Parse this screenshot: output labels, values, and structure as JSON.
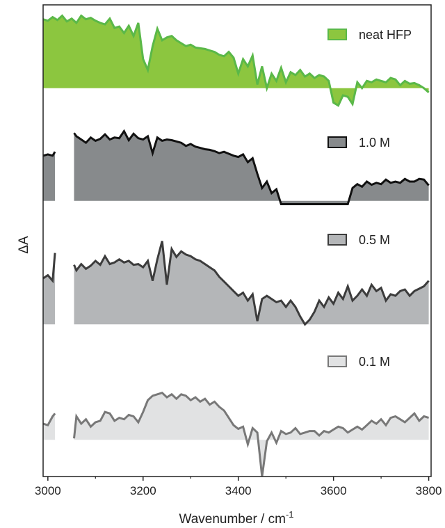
{
  "chart_data": {
    "type": "area",
    "xlabel": "Wavenumber / cm",
    "xlabel_superscript": "-1",
    "ylabel": "ΔA",
    "xlim": [
      2990,
      3805
    ],
    "x_ticks": [
      3000,
      3200,
      3400,
      3600,
      3800
    ],
    "x_tick_labels": [
      "3000",
      "3200",
      "3400",
      "3600",
      "3800"
    ],
    "y_axis": "no tick labels; traces vertically offset",
    "grid": false,
    "legend": "right, beside each trace",
    "series": [
      {
        "name": "neat HFP",
        "fill": "#8cc63f",
        "line": "#5ab848",
        "baseline": 0,
        "ylim": [
          -0.32,
          1.12
        ],
        "gaps": [],
        "x": [
          2990,
          3000,
          3010,
          3020,
          3030,
          3040,
          3050,
          3060,
          3070,
          3080,
          3090,
          3100,
          3110,
          3120,
          3130,
          3140,
          3150,
          3160,
          3170,
          3180,
          3190,
          3200,
          3210,
          3220,
          3230,
          3240,
          3250,
          3260,
          3270,
          3280,
          3290,
          3300,
          3310,
          3320,
          3330,
          3340,
          3350,
          3360,
          3370,
          3380,
          3390,
          3400,
          3410,
          3420,
          3430,
          3440,
          3450,
          3460,
          3470,
          3480,
          3490,
          3500,
          3510,
          3520,
          3530,
          3540,
          3550,
          3560,
          3570,
          3580,
          3590,
          3600,
          3610,
          3620,
          3630,
          3640,
          3650,
          3660,
          3670,
          3680,
          3690,
          3700,
          3710,
          3720,
          3730,
          3740,
          3750,
          3760,
          3770,
          3780,
          3790,
          3800
        ],
        "values": [
          0.95,
          0.93,
          0.98,
          0.94,
          1.0,
          0.92,
          0.96,
          0.9,
          1.0,
          0.95,
          0.97,
          0.93,
          0.9,
          0.88,
          0.96,
          0.83,
          0.85,
          0.76,
          0.86,
          0.72,
          0.9,
          0.4,
          0.25,
          0.58,
          0.82,
          0.66,
          0.7,
          0.72,
          0.66,
          0.62,
          0.58,
          0.6,
          0.56,
          0.55,
          0.54,
          0.52,
          0.5,
          0.46,
          0.44,
          0.5,
          0.42,
          0.2,
          0.4,
          0.3,
          0.45,
          0.05,
          0.3,
          0.0,
          0.2,
          0.1,
          0.28,
          0.08,
          0.22,
          0.18,
          0.25,
          0.16,
          0.2,
          0.14,
          0.18,
          0.16,
          0.1,
          -0.2,
          -0.24,
          -0.1,
          -0.12,
          -0.22,
          0.08,
          0.0,
          0.1,
          0.08,
          0.12,
          0.1,
          0.08,
          0.14,
          0.12,
          0.04,
          0.1,
          0.06,
          0.07,
          0.04,
          0.0,
          -0.06
        ]
      },
      {
        "name": "1.0 M",
        "fill": "#878a8c",
        "line": "#111111",
        "baseline": 0,
        "ylim": [
          -0.12,
          1.3
        ],
        "gaps": [
          [
            3015,
            3055
          ]
        ],
        "x": [
          2990,
          3000,
          3010,
          3015,
          3055,
          3060,
          3070,
          3080,
          3090,
          3100,
          3110,
          3120,
          3130,
          3140,
          3150,
          3160,
          3170,
          3180,
          3190,
          3200,
          3210,
          3220,
          3230,
          3240,
          3250,
          3260,
          3270,
          3280,
          3290,
          3300,
          3310,
          3320,
          3330,
          3340,
          3350,
          3360,
          3370,
          3380,
          3390,
          3400,
          3410,
          3420,
          3430,
          3440,
          3450,
          3460,
          3470,
          3480,
          3490,
          3500,
          3510,
          3520,
          3530,
          3540,
          3550,
          3560,
          3570,
          3580,
          3590,
          3600,
          3610,
          3620,
          3630,
          3640,
          3650,
          3660,
          3670,
          3680,
          3690,
          3700,
          3710,
          3720,
          3730,
          3740,
          3750,
          3760,
          3770,
          3780,
          3790,
          3800
        ],
        "values": [
          0.7,
          0.72,
          0.7,
          0.76,
          1.05,
          1.0,
          0.95,
          0.9,
          0.98,
          0.93,
          0.96,
          1.03,
          0.95,
          0.98,
          0.97,
          1.08,
          0.94,
          1.04,
          0.97,
          0.95,
          1.0,
          0.74,
          0.98,
          0.93,
          0.95,
          0.94,
          0.92,
          0.9,
          0.85,
          0.88,
          0.84,
          0.82,
          0.8,
          0.79,
          0.77,
          0.74,
          0.76,
          0.73,
          0.7,
          0.68,
          0.72,
          0.6,
          0.66,
          0.42,
          0.2,
          0.3,
          0.12,
          0.18,
          -0.05,
          -0.05,
          -0.05,
          -0.05,
          -0.05,
          -0.05,
          -0.05,
          -0.05,
          -0.05,
          -0.05,
          -0.05,
          -0.05,
          -0.05,
          -0.05,
          -0.05,
          0.2,
          0.26,
          0.22,
          0.3,
          0.25,
          0.28,
          0.26,
          0.33,
          0.28,
          0.3,
          0.28,
          0.34,
          0.3,
          0.3,
          0.34,
          0.33,
          0.24
        ]
      },
      {
        "name": "0.5 M",
        "fill": "#b4b6b8",
        "line": "#3c3c3c",
        "baseline": 0,
        "ylim": [
          -0.12,
          1.3
        ],
        "gaps": [
          [
            3015,
            3055
          ]
        ],
        "x": [
          2990,
          3000,
          3010,
          3015,
          3055,
          3060,
          3070,
          3080,
          3090,
          3100,
          3110,
          3120,
          3130,
          3140,
          3150,
          3160,
          3170,
          3180,
          3190,
          3200,
          3210,
          3220,
          3230,
          3240,
          3250,
          3260,
          3270,
          3280,
          3290,
          3300,
          3310,
          3320,
          3330,
          3340,
          3350,
          3360,
          3370,
          3380,
          3390,
          3400,
          3410,
          3420,
          3430,
          3440,
          3450,
          3460,
          3470,
          3480,
          3490,
          3500,
          3510,
          3520,
          3530,
          3540,
          3550,
          3560,
          3570,
          3580,
          3590,
          3600,
          3610,
          3620,
          3630,
          3640,
          3650,
          3660,
          3670,
          3680,
          3690,
          3700,
          3710,
          3720,
          3730,
          3740,
          3750,
          3760,
          3770,
          3780,
          3790,
          3800
        ],
        "values": [
          0.58,
          0.62,
          0.55,
          0.9,
          0.75,
          0.68,
          0.76,
          0.7,
          0.74,
          0.8,
          0.75,
          0.86,
          0.76,
          0.78,
          0.82,
          0.78,
          0.8,
          0.75,
          0.76,
          0.72,
          0.8,
          0.55,
          0.82,
          1.05,
          0.5,
          0.95,
          0.85,
          0.92,
          0.88,
          0.86,
          0.82,
          0.8,
          0.76,
          0.72,
          0.68,
          0.6,
          0.54,
          0.48,
          0.42,
          0.36,
          0.4,
          0.3,
          0.38,
          0.04,
          0.32,
          0.36,
          0.32,
          0.28,
          0.3,
          0.22,
          0.3,
          0.22,
          0.1,
          0.0,
          0.06,
          0.16,
          0.3,
          0.22,
          0.34,
          0.26,
          0.4,
          0.32,
          0.48,
          0.3,
          0.36,
          0.44,
          0.36,
          0.5,
          0.42,
          0.46,
          0.3,
          0.38,
          0.36,
          0.42,
          0.44,
          0.36,
          0.42,
          0.45,
          0.48,
          0.55
        ]
      },
      {
        "name": "0.1 M",
        "fill": "#e1e2e3",
        "line": "#787878",
        "baseline": 0,
        "ylim": [
          -0.12,
          1.3
        ],
        "gaps": [
          [
            3015,
            3055
          ]
        ],
        "x": [
          2990,
          3000,
          3010,
          3015,
          3055,
          3060,
          3070,
          3080,
          3090,
          3100,
          3110,
          3120,
          3130,
          3140,
          3150,
          3160,
          3170,
          3180,
          3190,
          3200,
          3210,
          3220,
          3230,
          3240,
          3250,
          3260,
          3270,
          3280,
          3290,
          3300,
          3310,
          3320,
          3330,
          3340,
          3350,
          3360,
          3370,
          3380,
          3390,
          3400,
          3410,
          3420,
          3430,
          3440,
          3450,
          3460,
          3470,
          3480,
          3490,
          3500,
          3510,
          3520,
          3530,
          3540,
          3550,
          3560,
          3570,
          3580,
          3590,
          3600,
          3610,
          3620,
          3630,
          3640,
          3650,
          3660,
          3670,
          3680,
          3690,
          3700,
          3710,
          3720,
          3730,
          3740,
          3750,
          3760,
          3770,
          3780,
          3790,
          3800
        ],
        "values": [
          0.22,
          0.2,
          0.32,
          0.36,
          0.02,
          0.32,
          0.22,
          0.28,
          0.18,
          0.24,
          0.26,
          0.38,
          0.36,
          0.26,
          0.3,
          0.28,
          0.34,
          0.32,
          0.24,
          0.38,
          0.54,
          0.6,
          0.62,
          0.64,
          0.58,
          0.62,
          0.56,
          0.62,
          0.6,
          0.54,
          0.58,
          0.52,
          0.56,
          0.48,
          0.52,
          0.45,
          0.4,
          0.3,
          0.2,
          0.15,
          0.18,
          -0.06,
          0.16,
          0.1,
          -0.5,
          -0.02,
          0.1,
          -0.04,
          0.12,
          0.08,
          0.1,
          0.16,
          0.08,
          0.1,
          0.12,
          0.12,
          0.06,
          0.12,
          0.1,
          0.14,
          0.18,
          0.16,
          0.1,
          0.14,
          0.18,
          0.14,
          0.2,
          0.26,
          0.22,
          0.28,
          0.2,
          0.3,
          0.32,
          0.28,
          0.24,
          0.3,
          0.36,
          0.26,
          0.32,
          0.3
        ]
      }
    ]
  }
}
